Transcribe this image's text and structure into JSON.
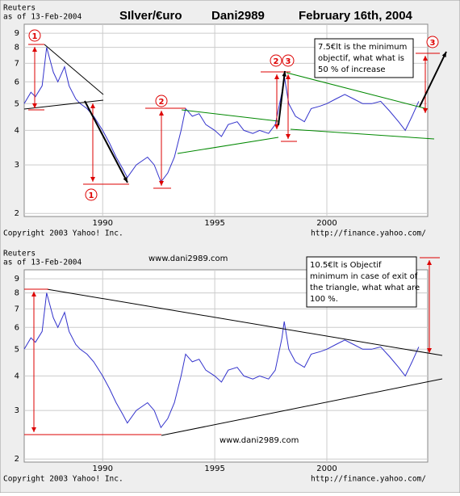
{
  "header": {
    "title": "SIlver/€uro",
    "author": "Dani2989",
    "date": "February 16th, 2004"
  },
  "chart_data": [
    {
      "type": "line",
      "source": "Reuters",
      "as_of": "as of 13-Feb-2004",
      "copyright": "Copyright 2003 Yahoo! Inc.",
      "url": "http://finance.yahoo.com/",
      "log_scale": true,
      "grid": true,
      "xlim": [
        1986.5,
        2004.5
      ],
      "ylim": [
        1.95,
        9.7
      ],
      "xticks": [
        1990,
        1995,
        2000
      ],
      "yticks": [
        2,
        3,
        4,
        5,
        6,
        7,
        8,
        9
      ],
      "x": [
        1986.5,
        1986.8,
        1987.0,
        1987.3,
        1987.5,
        1987.8,
        1988.0,
        1988.3,
        1988.5,
        1988.8,
        1989.0,
        1989.3,
        1989.6,
        1990.0,
        1990.3,
        1990.6,
        1990.9,
        1991.1,
        1991.5,
        1992.0,
        1992.3,
        1992.6,
        1992.9,
        1993.2,
        1993.5,
        1993.7,
        1994.0,
        1994.3,
        1994.6,
        1995.0,
        1995.3,
        1995.6,
        1996.0,
        1996.3,
        1996.7,
        1997.0,
        1997.4,
        1997.7,
        1998.0,
        1998.1,
        1998.3,
        1998.6,
        1999.0,
        1999.3,
        1999.7,
        2000.0,
        2000.4,
        2000.8,
        2001.2,
        2001.6,
        2002.0,
        2002.4,
        2002.8,
        2003.2,
        2003.5,
        2003.8,
        2004.1
      ],
      "series": [
        {
          "color": "#3333cc",
          "values": [
            5.0,
            5.5,
            5.3,
            5.8,
            8.0,
            6.5,
            6.0,
            6.8,
            5.8,
            5.2,
            5.0,
            4.8,
            4.5,
            4.0,
            3.6,
            3.2,
            2.9,
            2.7,
            3.0,
            3.2,
            3.0,
            2.6,
            2.8,
            3.2,
            4.0,
            4.8,
            4.5,
            4.6,
            4.2,
            4.0,
            3.8,
            4.2,
            4.3,
            4.0,
            3.9,
            4.0,
            3.9,
            4.2,
            5.5,
            6.3,
            5.0,
            4.5,
            4.3,
            4.8,
            4.9,
            5.0,
            5.2,
            5.4,
            5.2,
            5.0,
            5.0,
            5.1,
            4.7,
            4.3,
            4.0,
            4.5,
            5.1
          ]
        }
      ],
      "markers": [
        "1",
        "1",
        "2",
        "2",
        "3",
        "3"
      ],
      "note": [
        "7.5€lt is the minimum",
        "objectif,   what what is",
        "50 % of increase"
      ]
    },
    {
      "type": "line",
      "source": "Reuters",
      "as_of": "as of 13-Feb-2004",
      "copyright": "Copyright 2003 Yahoo! Inc.",
      "url": "http://finance.yahoo.com/",
      "log_scale": true,
      "grid": true,
      "xlim": [
        1986.5,
        2004.5
      ],
      "ylim": [
        1.95,
        9.7
      ],
      "xticks": [
        1990,
        1995,
        2000
      ],
      "yticks": [
        2,
        3,
        4,
        5,
        6,
        7,
        8,
        9
      ],
      "x": [
        1986.5,
        1986.8,
        1987.0,
        1987.3,
        1987.5,
        1987.8,
        1988.0,
        1988.3,
        1988.5,
        1988.8,
        1989.0,
        1989.3,
        1989.6,
        1990.0,
        1990.3,
        1990.6,
        1990.9,
        1991.1,
        1991.5,
        1992.0,
        1992.3,
        1992.6,
        1992.9,
        1993.2,
        1993.5,
        1993.7,
        1994.0,
        1994.3,
        1994.6,
        1995.0,
        1995.3,
        1995.6,
        1996.0,
        1996.3,
        1996.7,
        1997.0,
        1997.4,
        1997.7,
        1998.0,
        1998.1,
        1998.3,
        1998.6,
        1999.0,
        1999.3,
        1999.7,
        2000.0,
        2000.4,
        2000.8,
        2001.2,
        2001.6,
        2002.0,
        2002.4,
        2002.8,
        2003.2,
        2003.5,
        2003.8,
        2004.1
      ],
      "series": [
        {
          "color": "#3333cc",
          "values": [
            5.0,
            5.5,
            5.3,
            5.8,
            8.0,
            6.5,
            6.0,
            6.8,
            5.8,
            5.2,
            5.0,
            4.8,
            4.5,
            4.0,
            3.6,
            3.2,
            2.9,
            2.7,
            3.0,
            3.2,
            3.0,
            2.6,
            2.8,
            3.2,
            4.0,
            4.8,
            4.5,
            4.6,
            4.2,
            4.0,
            3.8,
            4.2,
            4.3,
            4.0,
            3.9,
            4.0,
            3.9,
            4.2,
            5.5,
            6.3,
            5.0,
            4.5,
            4.3,
            4.8,
            4.9,
            5.0,
            5.2,
            5.4,
            5.2,
            5.0,
            5.0,
            5.1,
            4.7,
            4.3,
            4.0,
            4.5,
            5.1
          ]
        }
      ],
      "watermarks": [
        "www.dani2989.com",
        "www.dani2989.com"
      ],
      "note": [
        "10.5€lt is Objectif",
        "minimum in case of exit of",
        "the triangle, what what are",
        "100 %."
      ]
    }
  ]
}
